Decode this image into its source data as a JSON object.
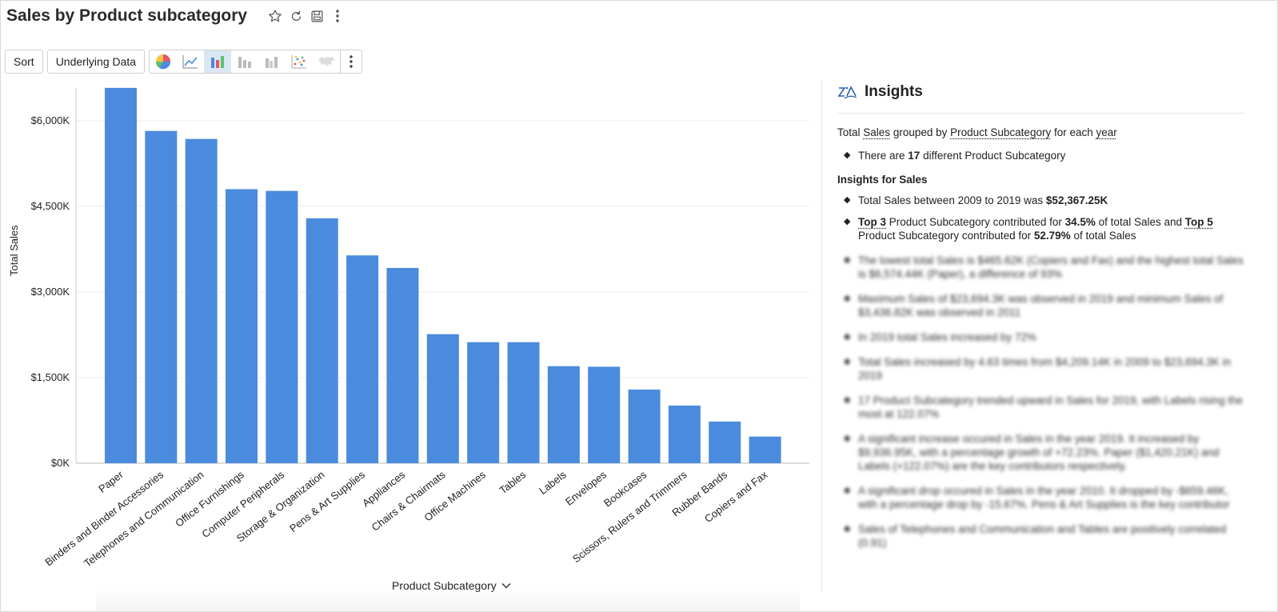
{
  "header": {
    "title": "Sales by Product subcategory"
  },
  "toolbar": {
    "sort_label": "Sort",
    "underlying_label": "Underlying Data",
    "chart_types": [
      "pie-chart-icon",
      "line-chart-icon",
      "bar-chart-icon",
      "stacked-bar-icon",
      "grouped-bar-icon",
      "scatter-icon",
      "map-icon"
    ],
    "active_chart_type": "bar-chart-icon"
  },
  "colors": {
    "bar": "#4a8bdd",
    "accent": "#2c5fb3",
    "negative": "#e05050",
    "positive": "#3cb44a"
  },
  "chart_data": {
    "type": "bar",
    "ylabel": "Total Sales",
    "xlabel": "Product Subcategory",
    "ylim": [
      0,
      6600
    ],
    "yticks": [
      0,
      1500,
      3000,
      4500,
      6000
    ],
    "ytick_labels": [
      "$0K",
      "$1,500K",
      "$3,000K",
      "$4,500K",
      "$6,000K"
    ],
    "grid": true,
    "categories": [
      "Paper",
      "Binders and Binder Accessories",
      "Telephones and Communication",
      "Office Furnishings",
      "Computer Peripherals",
      "Storage & Organization",
      "Pens & Art Supplies",
      "Appliances",
      "Chairs & Chairmats",
      "Office Machines",
      "Tables",
      "Labels",
      "Envelopes",
      "Bookcases",
      "Scissors, Rulers and Trimmers",
      "Rubber Bands",
      "Copiers and Fax"
    ],
    "values": [
      6574,
      5820,
      5680,
      4800,
      4770,
      4290,
      3640,
      3420,
      2260,
      2120,
      2120,
      1700,
      1690,
      1290,
      1010,
      730,
      466
    ]
  },
  "insights": {
    "title": "Insights",
    "summary": {
      "p1": "Total ",
      "measure": "Sales",
      "p2": " grouped by ",
      "dimension": "Product Subcategory",
      "p3": " for each ",
      "period": "year"
    },
    "count_line": {
      "p1": "There are ",
      "count": "17",
      "p2": " different Product Subcategory"
    },
    "section_title": "Insights for Sales",
    "total_line": {
      "p1": "Total Sales between 2009 to 2019 was ",
      "value": "$52,367.25K"
    },
    "top_line": {
      "top3": "Top 3",
      "p1": " Product Subcategory contributed for ",
      "v1": "34.5%",
      "p2": " of total Sales and ",
      "top5": "Top 5",
      "p3": " Product Subcategory contributed for ",
      "v2": "52.79%",
      "p4": " of total Sales"
    },
    "blurred": [
      "The lowest total Sales is $465.62K (Copiers and Fax) and the highest total Sales is $6,574.44K (Paper), a difference of 93%",
      "Maximum Sales of $23,694.3K was observed in 2019 and minimum Sales of $3,436.82K was observed in 2011",
      "In 2019 total Sales increased by 72%",
      "Total Sales increased by 4.63 times from $4,209.14K in 2009 to $23,694.3K in 2019",
      "17 Product Subcategory trended upward in Sales for 2019, with Labels rising the most at 122.07%",
      "A significant increase occured in Sales in the year 2019. It increased by $9,936.95K, with a percentage growth of +72.23%. Paper ($1,420.21K) and Labels (+122.07%) are the key contributors respectively.",
      "A significant drop occured in Sales in the year 2010. It dropped by -$659.46K, with a percentage drop by -15.67%. Pens & Art Supplies is the key contributor",
      "Sales of Telephones and Communication and Tables are positively correlated (0.91)"
    ]
  }
}
